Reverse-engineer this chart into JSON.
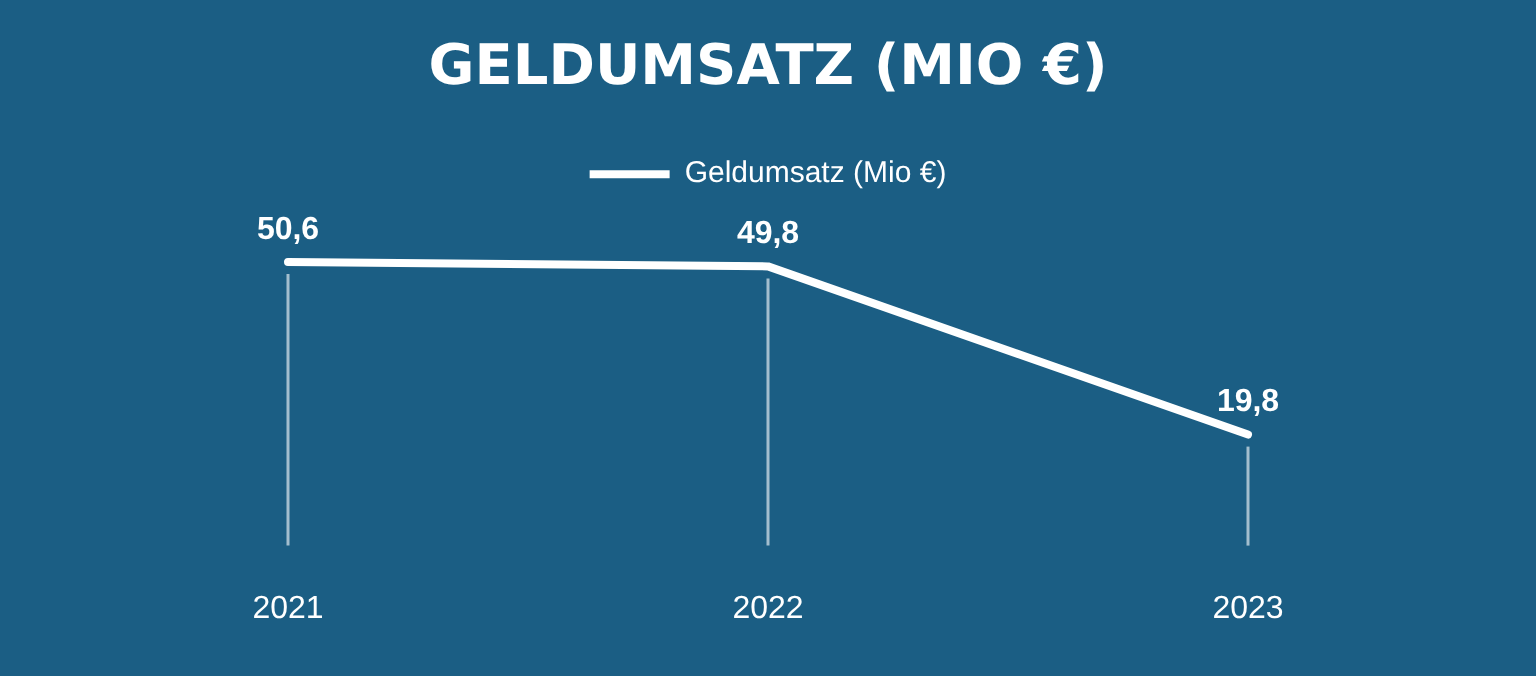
{
  "chart_data": {
    "type": "line",
    "title": "GELDUMSATZ (MIO €)",
    "categories": [
      "2021",
      "2022",
      "2023"
    ],
    "series": [
      {
        "name": "Geldumsatz (Mio €)",
        "color": "#ffffff",
        "values": [
          50.6,
          49.8,
          19.8
        ],
        "value_labels": [
          "50,6",
          "49,8",
          "19,8"
        ]
      }
    ],
    "legend": "top",
    "grid": "x",
    "marker": "none",
    "line_style": "solid"
  }
}
